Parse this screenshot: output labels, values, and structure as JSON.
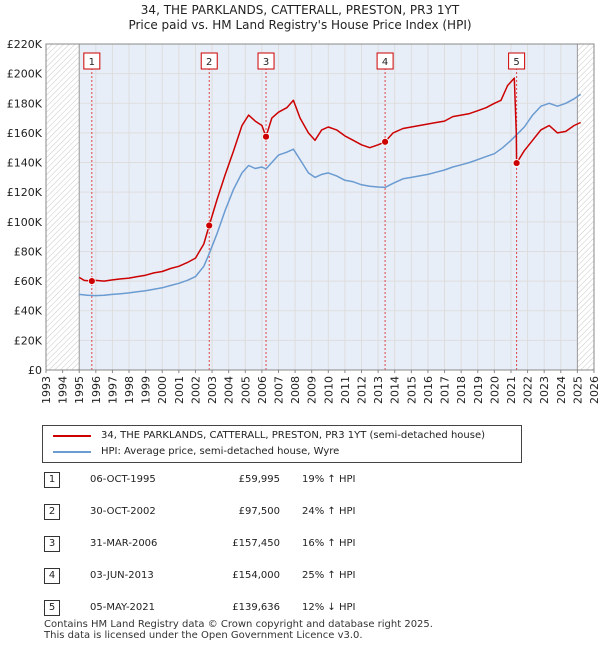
{
  "title_line1": "34, THE PARKLANDS, CATTERALL, PRESTON, PR3 1YT",
  "title_line2": "Price paid vs. HM Land Registry's House Price Index (HPI)",
  "colors": {
    "property": "#cc0000",
    "hpi": "#6a9bd1",
    "grid": "#dddddd",
    "shade": "#e8eef8"
  },
  "chart_data": {
    "type": "line",
    "xlim": [
      1993,
      2026
    ],
    "ylim": [
      0,
      220000
    ],
    "yticks": [
      0,
      20000,
      40000,
      60000,
      80000,
      100000,
      120000,
      140000,
      160000,
      180000,
      200000,
      220000
    ],
    "ytick_labels": [
      "£0",
      "£20K",
      "£40K",
      "£60K",
      "£80K",
      "£100K",
      "£120K",
      "£140K",
      "£160K",
      "£180K",
      "£200K",
      "£220K"
    ],
    "xticks": [
      1993,
      1994,
      1995,
      1996,
      1997,
      1998,
      1999,
      2000,
      2001,
      2002,
      2003,
      2004,
      2005,
      2006,
      2007,
      2008,
      2009,
      2010,
      2011,
      2012,
      2013,
      2014,
      2015,
      2016,
      2017,
      2018,
      2019,
      2020,
      2021,
      2022,
      2023,
      2024,
      2025,
      2026
    ],
    "xtick_labels": [
      "1993",
      "1994",
      "1995",
      "1996",
      "1997",
      "1998",
      "1999",
      "2000",
      "2001",
      "2002",
      "2003",
      "2004",
      "2005",
      "2006",
      "2007",
      "2008",
      "2009",
      "2010",
      "2011",
      "2012",
      "2013",
      "2014",
      "2015",
      "2016",
      "2017",
      "2018",
      "2019",
      "2020",
      "2021",
      "2022",
      "2023",
      "2024",
      "2025",
      "2026"
    ],
    "hatched_ranges": [
      [
        1993,
        1995.0
      ],
      [
        2025.0,
        2026
      ]
    ],
    "series": [
      {
        "name": "34, THE PARKLANDS, CATTERALL, PRESTON, PR3 1YT (semi-detached house)",
        "color": "#cc0000",
        "points": [
          [
            1995.0,
            62500
          ],
          [
            1995.3,
            60500
          ],
          [
            1995.76,
            59995
          ],
          [
            1996.0,
            60500
          ],
          [
            1996.5,
            60000
          ],
          [
            1997.0,
            60800
          ],
          [
            1997.5,
            61500
          ],
          [
            1998.0,
            62000
          ],
          [
            1998.5,
            63000
          ],
          [
            1999.0,
            64000
          ],
          [
            1999.5,
            65500
          ],
          [
            2000.0,
            66500
          ],
          [
            2000.5,
            68500
          ],
          [
            2001.0,
            70000
          ],
          [
            2001.5,
            72500
          ],
          [
            2002.0,
            75500
          ],
          [
            2002.5,
            85000
          ],
          [
            2002.83,
            97500
          ],
          [
            2003.3,
            115000
          ],
          [
            2003.8,
            132000
          ],
          [
            2004.3,
            148000
          ],
          [
            2004.8,
            165000
          ],
          [
            2005.2,
            172000
          ],
          [
            2005.6,
            168000
          ],
          [
            2006.0,
            165000
          ],
          [
            2006.25,
            157450
          ],
          [
            2006.6,
            170000
          ],
          [
            2007.0,
            174000
          ],
          [
            2007.5,
            177000
          ],
          [
            2007.9,
            182000
          ],
          [
            2008.3,
            170000
          ],
          [
            2008.8,
            160000
          ],
          [
            2009.2,
            155000
          ],
          [
            2009.6,
            162000
          ],
          [
            2010.0,
            164000
          ],
          [
            2010.5,
            162000
          ],
          [
            2011.0,
            158000
          ],
          [
            2011.5,
            155000
          ],
          [
            2012.0,
            152000
          ],
          [
            2012.5,
            150000
          ],
          [
            2013.0,
            152000
          ],
          [
            2013.42,
            154000
          ],
          [
            2013.9,
            160000
          ],
          [
            2014.5,
            163000
          ],
          [
            2015.0,
            164000
          ],
          [
            2015.5,
            165000
          ],
          [
            2016.0,
            166000
          ],
          [
            2016.5,
            167000
          ],
          [
            2017.0,
            168000
          ],
          [
            2017.5,
            171000
          ],
          [
            2018.0,
            172000
          ],
          [
            2018.5,
            173000
          ],
          [
            2019.0,
            175000
          ],
          [
            2019.5,
            177000
          ],
          [
            2020.0,
            180000
          ],
          [
            2020.4,
            182000
          ],
          [
            2020.8,
            192000
          ],
          [
            2021.2,
            197000
          ],
          [
            2021.32,
            160000
          ],
          [
            2021.34,
            139636
          ],
          [
            2021.8,
            148000
          ],
          [
            2022.3,
            155000
          ],
          [
            2022.8,
            162000
          ],
          [
            2023.3,
            165000
          ],
          [
            2023.8,
            160000
          ],
          [
            2024.3,
            161000
          ],
          [
            2024.8,
            165000
          ],
          [
            2025.2,
            167000
          ]
        ]
      },
      {
        "name": "HPI: Average price, semi-detached house, Wyre",
        "color": "#6a9bd1",
        "points": [
          [
            1995.0,
            51000
          ],
          [
            1995.5,
            50500
          ],
          [
            1996.0,
            50200
          ],
          [
            1996.5,
            50500
          ],
          [
            1997.0,
            51000
          ],
          [
            1997.5,
            51500
          ],
          [
            1998.0,
            52000
          ],
          [
            1998.5,
            52800
          ],
          [
            1999.0,
            53500
          ],
          [
            1999.5,
            54500
          ],
          [
            2000.0,
            55500
          ],
          [
            2000.5,
            57000
          ],
          [
            2001.0,
            58500
          ],
          [
            2001.5,
            60500
          ],
          [
            2002.0,
            63000
          ],
          [
            2002.5,
            70000
          ],
          [
            2002.83,
            78500
          ],
          [
            2003.3,
            92000
          ],
          [
            2003.8,
            108000
          ],
          [
            2004.3,
            122000
          ],
          [
            2004.8,
            133000
          ],
          [
            2005.2,
            138000
          ],
          [
            2005.6,
            136000
          ],
          [
            2006.0,
            137000
          ],
          [
            2006.25,
            135700
          ],
          [
            2006.6,
            140000
          ],
          [
            2007.0,
            145000
          ],
          [
            2007.5,
            147000
          ],
          [
            2007.9,
            149000
          ],
          [
            2008.3,
            142000
          ],
          [
            2008.8,
            133000
          ],
          [
            2009.2,
            130000
          ],
          [
            2009.6,
            132000
          ],
          [
            2010.0,
            133000
          ],
          [
            2010.5,
            131000
          ],
          [
            2011.0,
            128000
          ],
          [
            2011.5,
            127000
          ],
          [
            2012.0,
            125000
          ],
          [
            2012.5,
            124000
          ],
          [
            2013.0,
            123500
          ],
          [
            2013.42,
            123200
          ],
          [
            2013.9,
            126000
          ],
          [
            2014.5,
            129000
          ],
          [
            2015.0,
            130000
          ],
          [
            2015.5,
            131000
          ],
          [
            2016.0,
            132000
          ],
          [
            2016.5,
            133500
          ],
          [
            2017.0,
            135000
          ],
          [
            2017.5,
            137000
          ],
          [
            2018.0,
            138500
          ],
          [
            2018.5,
            140000
          ],
          [
            2019.0,
            142000
          ],
          [
            2019.5,
            144000
          ],
          [
            2020.0,
            146000
          ],
          [
            2020.5,
            150000
          ],
          [
            2021.0,
            155000
          ],
          [
            2021.34,
            158700
          ],
          [
            2021.8,
            164000
          ],
          [
            2022.3,
            172000
          ],
          [
            2022.8,
            178000
          ],
          [
            2023.3,
            180000
          ],
          [
            2023.8,
            178000
          ],
          [
            2024.3,
            180000
          ],
          [
            2024.8,
            183000
          ],
          [
            2025.2,
            186000
          ]
        ]
      }
    ],
    "sales": [
      {
        "num": "1",
        "x": 1995.76,
        "y": 59995
      },
      {
        "num": "2",
        "x": 2002.83,
        "y": 97500
      },
      {
        "num": "3",
        "x": 2006.25,
        "y": 157450
      },
      {
        "num": "4",
        "x": 2013.42,
        "y": 154000
      },
      {
        "num": "5",
        "x": 2021.34,
        "y": 139636
      }
    ]
  },
  "legend": {
    "property_label": "34, THE PARKLANDS, CATTERALL, PRESTON, PR3 1YT (semi-detached house)",
    "hpi_label": "HPI: Average price, semi-detached house, Wyre"
  },
  "transactions": [
    {
      "num": "1",
      "date": "06-OCT-1995",
      "price": "£59,995",
      "hpi": "19% ↑ HPI"
    },
    {
      "num": "2",
      "date": "30-OCT-2002",
      "price": "£97,500",
      "hpi": "24% ↑ HPI"
    },
    {
      "num": "3",
      "date": "31-MAR-2006",
      "price": "£157,450",
      "hpi": "16% ↑ HPI"
    },
    {
      "num": "4",
      "date": "03-JUN-2013",
      "price": "£154,000",
      "hpi": "25% ↑ HPI"
    },
    {
      "num": "5",
      "date": "05-MAY-2021",
      "price": "£139,636",
      "hpi": "12% ↓ HPI"
    }
  ],
  "footer_line1": "Contains HM Land Registry data © Crown copyright and database right 2025.",
  "footer_line2": "This data is licensed under the Open Government Licence v3.0."
}
